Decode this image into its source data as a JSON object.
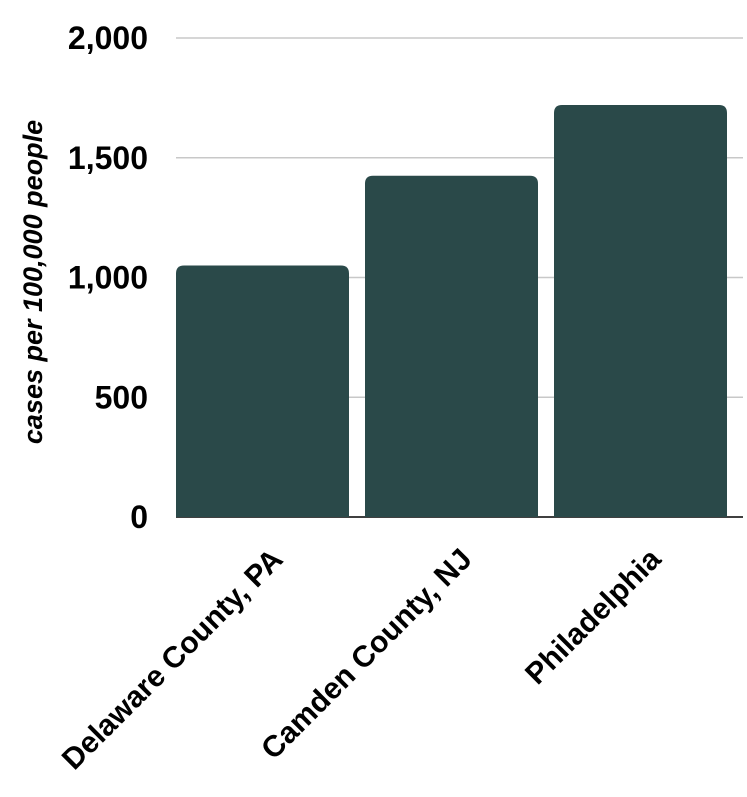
{
  "chart_data": {
    "type": "bar",
    "categories": [
      "Delaware County, PA",
      "Camden County, NJ",
      "Philadelphia"
    ],
    "values": [
      1050,
      1425,
      1720
    ],
    "ylabel": "cases per 100,000 people",
    "ylim": [
      0,
      2000
    ],
    "yticks": [
      "0",
      "500",
      "1,000",
      "1,500",
      "2,000"
    ],
    "ytick_values": [
      0,
      500,
      1000,
      1500,
      2000
    ],
    "grid": true,
    "legend": "none",
    "bar_color": "#2a4949"
  }
}
